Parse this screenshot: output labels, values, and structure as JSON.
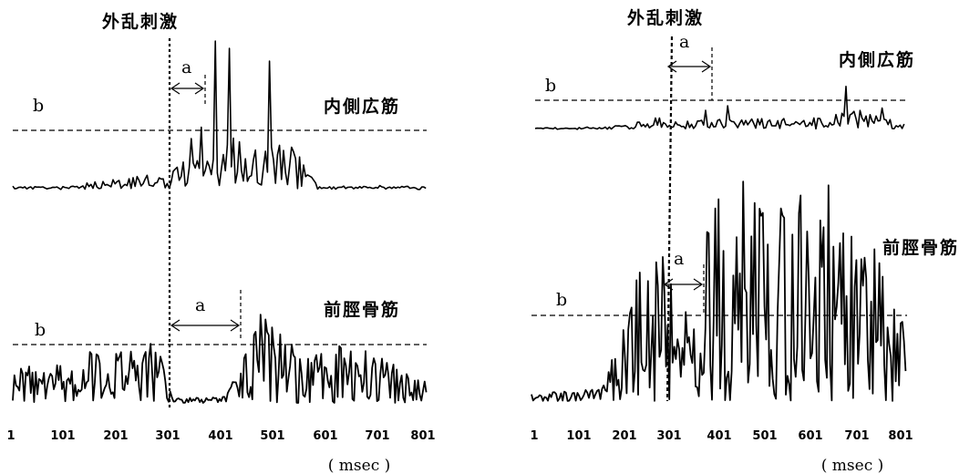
{
  "chart_data": [
    {
      "type": "line",
      "panel": "left",
      "stimulus_label": "外乱刺激",
      "stimulus_x": 301,
      "x_ticks": [
        1,
        101,
        201,
        301,
        401,
        501,
        601,
        701,
        801
      ],
      "x_unit": "( msec )",
      "xlim": [
        1,
        801
      ],
      "grid": false,
      "series": [
        {
          "name": "内側広筋",
          "threshold_label": "b",
          "latency_label": "a",
          "latency_range": [
            301,
            372
          ],
          "key_points": [
            [
              1,
              0.02
            ],
            [
              100,
              0.0
            ],
            [
              200,
              0.18
            ],
            [
              301,
              0.28
            ],
            [
              372,
              0.7
            ],
            [
              390,
              1.0
            ],
            [
              540,
              0.8
            ],
            [
              600,
              0.0
            ],
            [
              700,
              0.03
            ],
            [
              801,
              0.0
            ]
          ]
        },
        {
          "name": "前脛骨筋",
          "threshold_label": "b",
          "latency_label": "a",
          "latency_range": [
            301,
            441
          ],
          "key_points": [
            [
              1,
              0.3
            ],
            [
              150,
              0.45
            ],
            [
              280,
              0.55
            ],
            [
              310,
              0.05
            ],
            [
              400,
              0.05
            ],
            [
              441,
              0.3
            ],
            [
              480,
              0.95
            ],
            [
              560,
              0.4
            ],
            [
              650,
              0.55
            ],
            [
              801,
              0.2
            ]
          ]
        }
      ]
    },
    {
      "type": "line",
      "panel": "right",
      "stimulus_label": "外乱刺激",
      "stimulus_x": 301,
      "x_ticks": [
        1,
        101,
        201,
        301,
        401,
        501,
        601,
        701,
        801
      ],
      "x_unit": "( msec )",
      "xlim": [
        1,
        801
      ],
      "grid": false,
      "series": [
        {
          "name": "内側広筋",
          "threshold_label": "b",
          "latency_label": "a",
          "latency_range": [
            301,
            384
          ],
          "key_points": [
            [
              1,
              0.0
            ],
            [
              100,
              0.03
            ],
            [
              200,
              0.15
            ],
            [
              270,
              0.45
            ],
            [
              330,
              0.3
            ],
            [
              450,
              0.4
            ],
            [
              600,
              0.4
            ],
            [
              690,
              0.75
            ],
            [
              801,
              0.2
            ]
          ]
        },
        {
          "name": "前脛骨筋",
          "threshold_label": "b",
          "latency_label": "a",
          "latency_range": [
            301,
            374
          ],
          "key_points": [
            [
              1,
              0.03
            ],
            [
              150,
              0.05
            ],
            [
              220,
              0.5
            ],
            [
              280,
              0.65
            ],
            [
              330,
              0.4
            ],
            [
              400,
              0.85
            ],
            [
              500,
              0.95
            ],
            [
              590,
              1.0
            ],
            [
              700,
              0.7
            ],
            [
              780,
              0.5
            ],
            [
              801,
              0.2
            ]
          ]
        }
      ]
    }
  ]
}
